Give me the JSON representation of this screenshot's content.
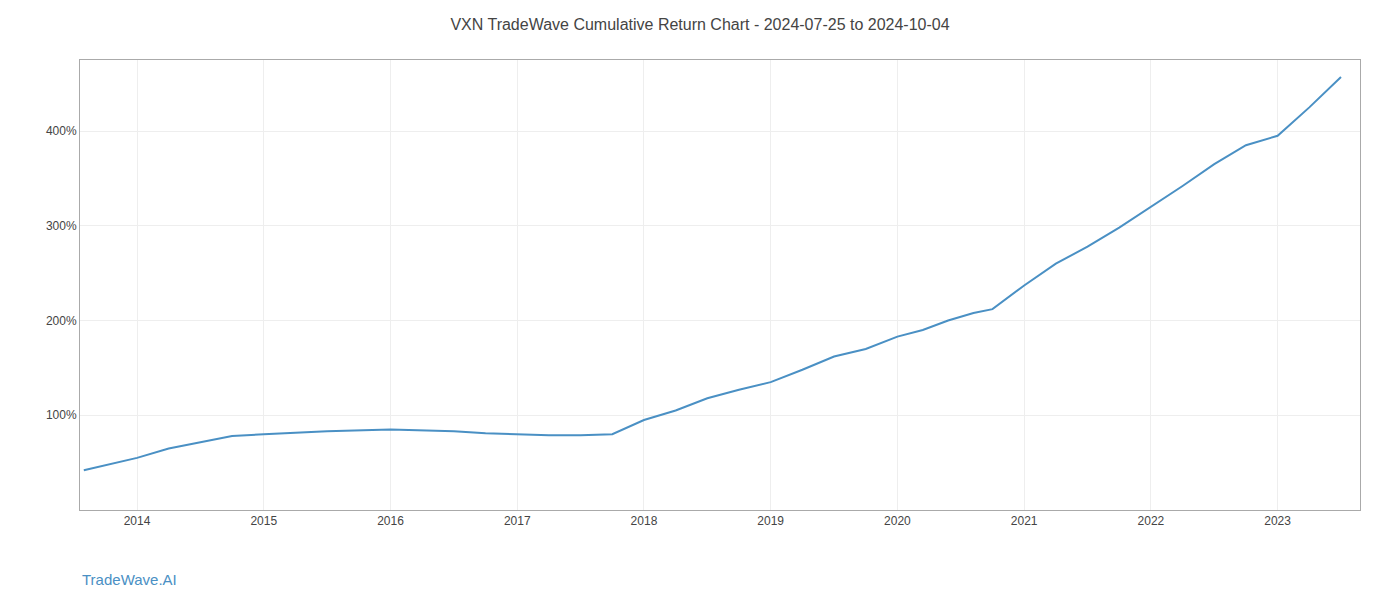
{
  "chart_data": {
    "type": "line",
    "title": "VXN TradeWave Cumulative Return Chart - 2024-07-25 to 2024-10-04",
    "x": [
      2013.58,
      2014.0,
      2014.25,
      2014.75,
      2015.0,
      2015.5,
      2016.0,
      2016.5,
      2016.75,
      2017.0,
      2017.25,
      2017.5,
      2017.75,
      2018.0,
      2018.25,
      2018.5,
      2018.75,
      2019.0,
      2019.25,
      2019.5,
      2019.75,
      2020.0,
      2020.2,
      2020.4,
      2020.6,
      2020.75,
      2021.0,
      2021.25,
      2021.5,
      2021.75,
      2022.0,
      2022.25,
      2022.5,
      2022.75,
      2023.0,
      2023.25,
      2023.5
    ],
    "values": [
      42,
      55,
      65,
      78,
      80,
      83,
      85,
      83,
      81,
      80,
      79,
      79,
      80,
      95,
      105,
      118,
      127,
      135,
      148,
      162,
      170,
      183,
      190,
      200,
      208,
      212,
      237,
      260,
      278,
      298,
      320,
      342,
      365,
      385,
      395,
      425,
      457
    ],
    "color": "#4a90c4",
    "xlim": [
      2013.55,
      2023.65
    ],
    "xticks": [
      2014,
      2015,
      2016,
      2017,
      2018,
      2019,
      2020,
      2021,
      2022,
      2023
    ],
    "ylim": [
      0,
      475
    ],
    "yticks": [
      {
        "value": 100,
        "label": "100%"
      },
      {
        "value": 200,
        "label": "200%"
      },
      {
        "value": 300,
        "label": "300%"
      },
      {
        "value": 400,
        "label": "400%"
      }
    ],
    "grid": true,
    "annotations": [
      {
        "text": "TradeWave.AI",
        "color": "#4a90c4"
      }
    ]
  }
}
